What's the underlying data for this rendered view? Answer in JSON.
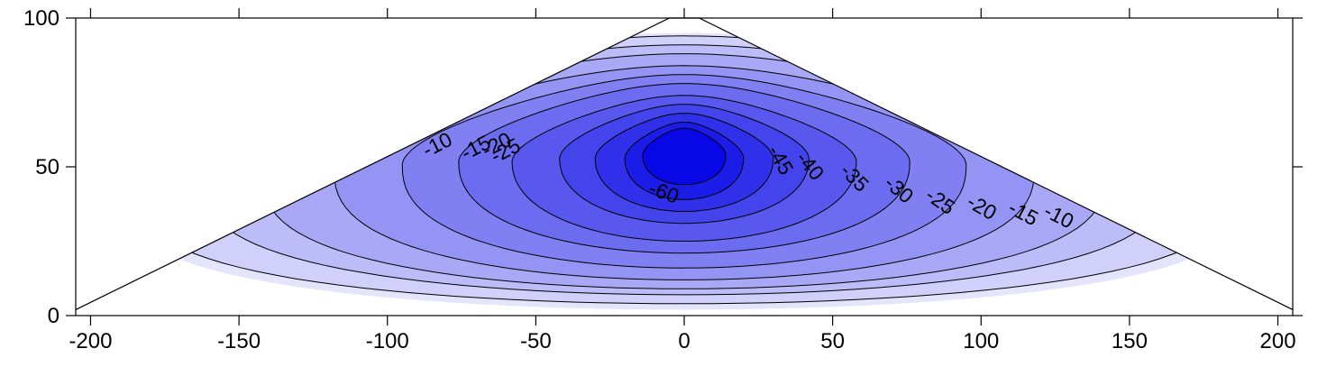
{
  "chart_data": {
    "type": "contour",
    "title": "",
    "xlabel": "",
    "ylabel": "",
    "xlim": [
      -205,
      205
    ],
    "ylim": [
      0,
      100
    ],
    "x_ticks": [
      -200,
      -150,
      -100,
      -50,
      0,
      50,
      100,
      150,
      200
    ],
    "y_ticks": [
      0,
      50,
      100
    ],
    "x_tick_labels": [
      "-200",
      "-150",
      "-100",
      "-50",
      "0",
      "50",
      "100",
      "150",
      "200"
    ],
    "y_tick_labels": [
      "0",
      "50",
      "100"
    ],
    "boundary": [
      [
        -205,
        2
      ],
      [
        -5,
        100
      ],
      [
        5,
        100
      ],
      [
        205,
        2
      ]
    ],
    "contour_levels": [
      -5,
      -10,
      -15,
      -20,
      -25,
      -30,
      -35,
      -40,
      -45,
      -50,
      -55,
      -60
    ],
    "fill_colors": [
      "#e4e4fc",
      "#d0d0fa",
      "#bcbcf8",
      "#a8a8f6",
      "#9494f4",
      "#8080f2",
      "#6c6cf0",
      "#5858ee",
      "#4444ec",
      "#3030ea",
      "#1c1ce8",
      "#0808e6"
    ],
    "contours": [
      {
        "level": -5,
        "cx": 0,
        "cy": 46,
        "rx": 190,
        "ry_up": 49,
        "ry_down": 44,
        "k_up": 0.92,
        "k_down": 0.4
      },
      {
        "level": -10,
        "cx": 0,
        "cy": 47,
        "rx": 185,
        "ry_up": 47,
        "ry_down": 43,
        "k_up": 1.0,
        "k_down": 0.45
      },
      {
        "level": -15,
        "cx": 0,
        "cy": 48,
        "rx": 162,
        "ry_up": 43,
        "ry_down": 41,
        "k_up": 1.0,
        "k_down": 0.55
      },
      {
        "level": -20,
        "cx": 0,
        "cy": 49,
        "rx": 142,
        "ry_up": 39,
        "ry_down": 40,
        "k_up": 1.0,
        "k_down": 0.6
      },
      {
        "level": -25,
        "cx": 0,
        "cy": 50,
        "rx": 118,
        "ry_up": 34,
        "ry_down": 38,
        "k_up": 1.0,
        "k_down": 0.7
      },
      {
        "level": -30,
        "cx": 0,
        "cy": 51,
        "rx": 95,
        "ry_up": 30,
        "ry_down": 35,
        "k_up": 1.0,
        "k_down": 0.8
      },
      {
        "level": -35,
        "cx": 0,
        "cy": 52,
        "rx": 76,
        "ry_up": 26,
        "ry_down": 31,
        "k_up": 1.0,
        "k_down": 0.9
      },
      {
        "level": -40,
        "cx": 0,
        "cy": 52,
        "rx": 58,
        "ry_up": 22,
        "ry_down": 27,
        "k_up": 1.0,
        "k_down": 1.0
      },
      {
        "level": -45,
        "cx": 0,
        "cy": 53,
        "rx": 42,
        "ry_up": 18,
        "ry_down": 22,
        "k_up": 1.0,
        "k_down": 1.0
      },
      {
        "level": -50,
        "cx": 0,
        "cy": 53,
        "rx": 30,
        "ry_up": 15,
        "ry_down": 18,
        "k_up": 1.0,
        "k_down": 1.0
      },
      {
        "level": -55,
        "cx": 0,
        "cy": 53,
        "rx": 20,
        "ry_up": 12,
        "ry_down": 14,
        "k_up": 1.0,
        "k_down": 1.0
      },
      {
        "level": -60,
        "cx": 0,
        "cy": 54,
        "rx": 14,
        "ry_up": 9,
        "ry_down": 10,
        "k_up": 1.0,
        "k_down": 1.0
      }
    ],
    "contour_labels": [
      {
        "text": "-10",
        "x": -83,
        "y": 57,
        "angle": -27
      },
      {
        "text": "-15",
        "x": -70,
        "y": 56,
        "angle": -27
      },
      {
        "text": "-20",
        "x": -63,
        "y": 57,
        "angle": -27
      },
      {
        "text": "-25",
        "x": -60,
        "y": 55,
        "angle": -27
      },
      {
        "text": "-45",
        "x": 32,
        "y": 52,
        "angle": 60
      },
      {
        "text": "-40",
        "x": 42,
        "y": 50,
        "angle": 50
      },
      {
        "text": "-35",
        "x": 57,
        "y": 46,
        "angle": 45
      },
      {
        "text": "-30",
        "x": 72,
        "y": 42,
        "angle": 40
      },
      {
        "text": "-25",
        "x": 86,
        "y": 38,
        "angle": 35
      },
      {
        "text": "-20",
        "x": 100,
        "y": 36,
        "angle": 30
      },
      {
        "text": "-15",
        "x": 114,
        "y": 34,
        "angle": 28
      },
      {
        "text": "-10",
        "x": 126,
        "y": 33,
        "angle": 27
      },
      {
        "text": "-60",
        "x": -7,
        "y": 41,
        "angle": 20
      }
    ],
    "grid": false,
    "legend": "none"
  }
}
